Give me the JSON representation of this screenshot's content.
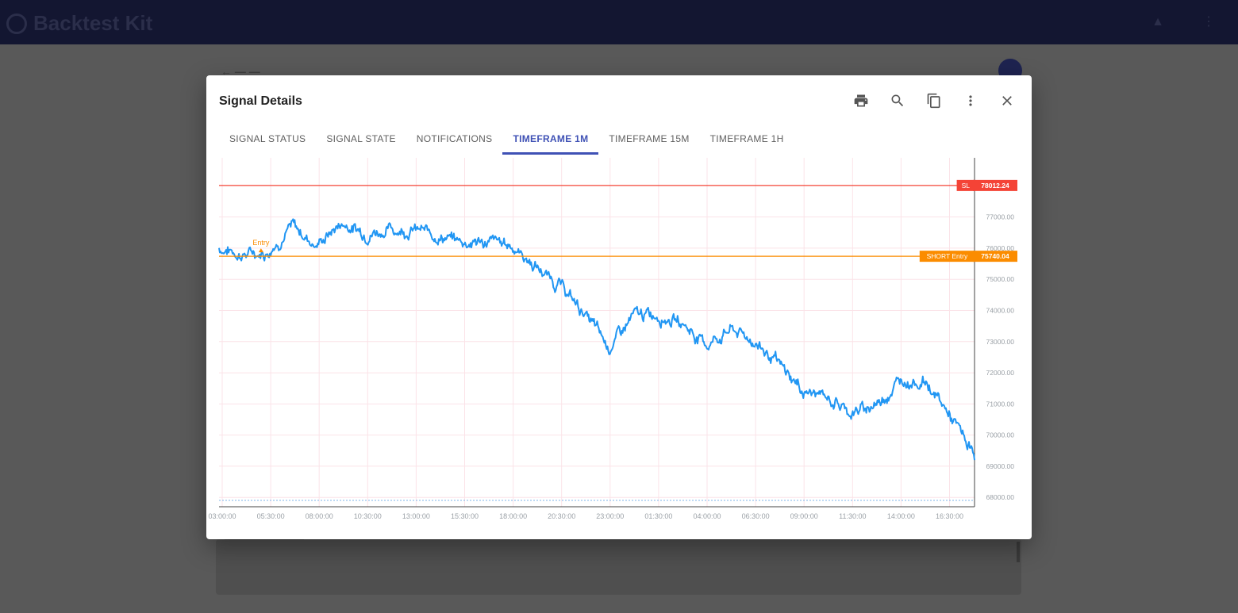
{
  "app": {
    "brand": "Backtest Kit"
  },
  "dialog": {
    "title": "Signal Details",
    "actions": [
      "print-icon",
      "search-icon",
      "copy-icon",
      "more-vert-icon",
      "close-icon"
    ]
  },
  "tabs": [
    {
      "label": "SIGNAL STATUS",
      "active": false
    },
    {
      "label": "SIGNAL STATE",
      "active": false
    },
    {
      "label": "NOTIFICATIONS",
      "active": false
    },
    {
      "label": "TIMEFRAME 1M",
      "active": true
    },
    {
      "label": "TIMEFRAME 15M",
      "active": false
    },
    {
      "label": "TIMEFRAME 1H",
      "active": false
    }
  ],
  "colors": {
    "accent": "#3f51b5",
    "price_line": "#2196f3",
    "sl": "#f44336",
    "entry": "#fb8c00"
  },
  "chart_data": {
    "type": "line",
    "series": [
      {
        "x": [
          "03:00:00",
          "04:15:00",
          "05:30:00",
          "06:45:00",
          "08:00:00",
          "09:15:00",
          "10:30:00",
          "11:45:00",
          "13:00:00",
          "14:15:00",
          "15:30:00",
          "16:45:00",
          "18:00:00",
          "19:15:00",
          "20:30:00",
          "21:45:00",
          "23:00:00",
          "00:15:00",
          "01:30:00",
          "02:45:00",
          "04:00:00",
          "05:15:00",
          "06:30:00",
          "07:45:00",
          "09:00:00",
          "10:15:00",
          "11:30:00",
          "12:45:00",
          "14:00:00",
          "15:15:00",
          "16:30:00",
          "17:20:00"
        ],
        "values": [
          76000,
          75800,
          75900,
          76700,
          76100,
          76800,
          76500,
          76600,
          76600,
          76400,
          76200,
          76200,
          76100,
          75400,
          74800,
          73900,
          72800,
          73800,
          73900,
          73600,
          72900,
          73400,
          73000,
          72200,
          71400,
          71200,
          70700,
          71000,
          71800,
          71700,
          70600,
          69300
        ]
      }
    ],
    "x_ticks": [
      "03:00:00",
      "05:30:00",
      "08:00:00",
      "10:30:00",
      "13:00:00",
      "15:30:00",
      "18:00:00",
      "20:30:00",
      "23:00:00",
      "01:30:00",
      "04:00:00",
      "06:30:00",
      "09:00:00",
      "11:30:00",
      "14:00:00",
      "16:30:00"
    ],
    "y_ticks": [
      "77000.00",
      "76000.00",
      "75000.00",
      "74000.00",
      "73000.00",
      "72000.00",
      "71000.00",
      "70000.00",
      "69000.00",
      "68000.00"
    ],
    "ylim": [
      67700,
      78900
    ],
    "price_lines": [
      {
        "label": "SL",
        "value": 78012.24,
        "value_label": "78012.24"
      },
      {
        "label": "SHORT Entry",
        "value": 75740.04,
        "value_label": "75740.04"
      }
    ],
    "markers": [
      {
        "label": "Entry",
        "x": "05:00:00"
      }
    ],
    "grid": true
  }
}
